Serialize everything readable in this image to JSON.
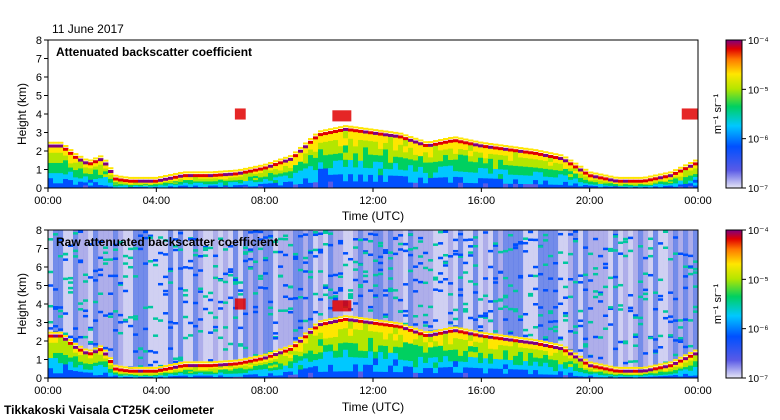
{
  "date": "11 June 2017",
  "footer": "Tikkakoski Vaisala CT25K ceilometer",
  "chart_data": [
    {
      "type": "heatmap",
      "title": "Attenuated backscatter coefficient",
      "xlabel": "Time (UTC)",
      "ylabel": "Height (km)",
      "x_ticks": [
        "00:00",
        "04:00",
        "08:00",
        "12:00",
        "16:00",
        "20:00",
        "00:00"
      ],
      "xlim_hours": [
        0,
        24
      ],
      "y_ticks": [
        0,
        1,
        2,
        3,
        4,
        5,
        6,
        7,
        8
      ],
      "ylim": [
        0,
        8
      ],
      "colorbar": {
        "scale": "log",
        "range": [
          1e-07,
          0.0001
        ],
        "tick_labels": [
          "10⁻⁴",
          "10⁻⁵",
          "10⁻⁶",
          "10⁻⁷"
        ],
        "unit": "m⁻¹ sr⁻¹"
      },
      "boundary_layer_top_km": [
        [
          0,
          2.2
        ],
        [
          0.5,
          2.2
        ],
        [
          1.0,
          1.6
        ],
        [
          1.5,
          1.2
        ],
        [
          2.0,
          1.5
        ],
        [
          2.5,
          0.4
        ],
        [
          3.0,
          0.3
        ],
        [
          4.0,
          0.3
        ],
        [
          5.0,
          0.6
        ],
        [
          6.0,
          0.6
        ],
        [
          7.0,
          0.7
        ],
        [
          8.0,
          1.0
        ],
        [
          9.0,
          1.5
        ],
        [
          10.0,
          2.8
        ],
        [
          11.0,
          3.1
        ],
        [
          12.0,
          2.9
        ],
        [
          13.0,
          2.7
        ],
        [
          14.0,
          2.2
        ],
        [
          15.0,
          2.5
        ],
        [
          16.0,
          2.2
        ],
        [
          17.0,
          2.0
        ],
        [
          18.0,
          1.8
        ],
        [
          19.0,
          1.5
        ],
        [
          20.0,
          0.6
        ],
        [
          21.0,
          0.3
        ],
        [
          22.0,
          0.3
        ],
        [
          23.0,
          0.6
        ],
        [
          24.0,
          1.3
        ]
      ],
      "elevated_layers": [
        {
          "start_h": 6.9,
          "end_h": 7.3,
          "height_km": 4.0
        },
        {
          "start_h": 10.5,
          "end_h": 11.2,
          "height_km": 3.9
        },
        {
          "start_h": 23.4,
          "end_h": 24.0,
          "height_km": 4.0
        }
      ]
    },
    {
      "type": "heatmap",
      "title": "Raw attenuated backscatter coefficient",
      "xlabel": "Time (UTC)",
      "ylabel": "Height (km)",
      "x_ticks": [
        "00:00",
        "04:00",
        "08:00",
        "12:00",
        "16:00",
        "20:00",
        "00:00"
      ],
      "xlim_hours": [
        0,
        24
      ],
      "y_ticks": [
        0,
        1,
        2,
        3,
        4,
        5,
        6,
        7,
        8
      ],
      "ylim": [
        0,
        8
      ],
      "colorbar": {
        "scale": "log",
        "range": [
          1e-07,
          0.0001
        ],
        "tick_labels": [
          "10⁻⁴",
          "10⁻⁵",
          "10⁻⁶",
          "10⁻⁷"
        ],
        "unit": "m⁻¹ sr⁻¹"
      },
      "boundary_layer_top_km": [
        [
          0,
          2.2
        ],
        [
          0.5,
          2.2
        ],
        [
          1.0,
          1.6
        ],
        [
          1.5,
          1.2
        ],
        [
          2.0,
          1.5
        ],
        [
          2.5,
          0.4
        ],
        [
          3.0,
          0.3
        ],
        [
          4.0,
          0.3
        ],
        [
          5.0,
          0.6
        ],
        [
          6.0,
          0.6
        ],
        [
          7.0,
          0.7
        ],
        [
          8.0,
          1.0
        ],
        [
          9.0,
          1.5
        ],
        [
          10.0,
          2.8
        ],
        [
          11.0,
          3.1
        ],
        [
          12.0,
          2.9
        ],
        [
          13.0,
          2.7
        ],
        [
          14.0,
          2.2
        ],
        [
          15.0,
          2.5
        ],
        [
          16.0,
          2.2
        ],
        [
          17.0,
          2.0
        ],
        [
          18.0,
          1.8
        ],
        [
          19.0,
          1.5
        ],
        [
          20.0,
          0.6
        ],
        [
          21.0,
          0.3
        ],
        [
          22.0,
          0.3
        ],
        [
          23.0,
          0.6
        ],
        [
          24.0,
          1.3
        ]
      ],
      "elevated_layers": [
        {
          "start_h": 6.9,
          "end_h": 7.3,
          "height_km": 4.0
        },
        {
          "start_h": 10.5,
          "end_h": 11.2,
          "height_km": 3.9
        }
      ]
    }
  ]
}
